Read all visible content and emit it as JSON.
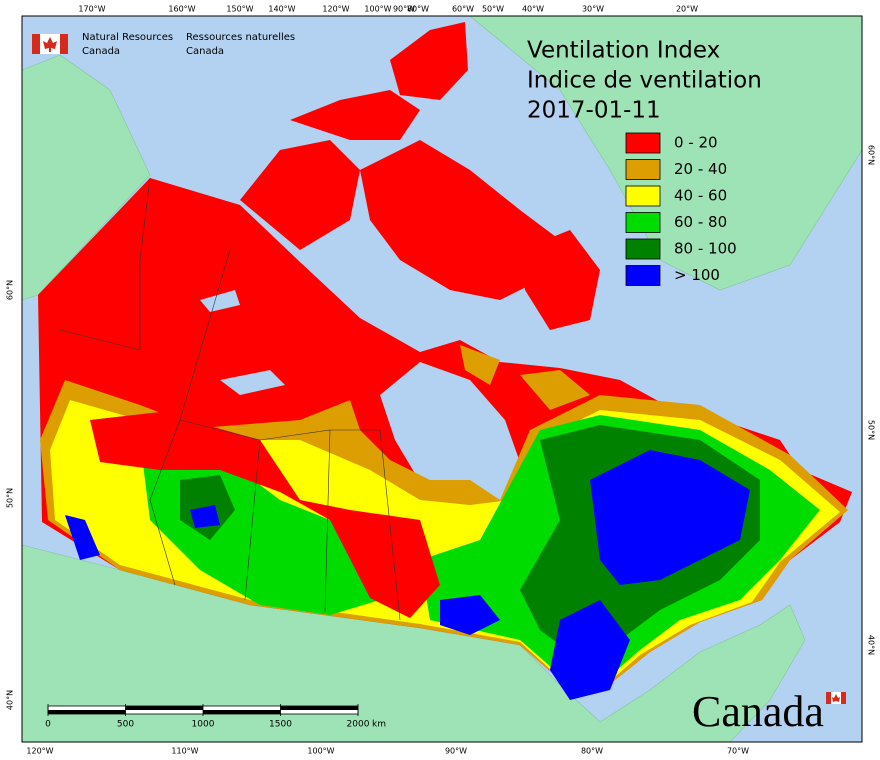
{
  "header": {
    "title": "Ventilation Index",
    "subtitle": "Indice de ventilation",
    "date": "2017-01-11"
  },
  "agency": {
    "en": [
      "Natural Resources",
      "Canada"
    ],
    "fr": [
      "Ressources naturelles",
      "Canada"
    ]
  },
  "legend": [
    {
      "label": "0 - 20",
      "color": "#ff0000"
    },
    {
      "label": "20 - 40",
      "color": "#dc9e00"
    },
    {
      "label": "40 - 60",
      "color": "#ffff00"
    },
    {
      "label": "60 - 80",
      "color": "#00dc00"
    },
    {
      "label": "80 - 100",
      "color": "#008200"
    },
    {
      "label": "> 100",
      "color": "#0000ff"
    }
  ],
  "graticule": {
    "top": [
      "170°W",
      "160°W",
      "150°W",
      "140°W",
      "120°W",
      "100°W",
      "90°W",
      "80°W",
      "60°W",
      "50°W",
      "40°W",
      "30°W",
      "20°W"
    ],
    "bottom": [
      "120°W",
      "110°W",
      "100°W",
      "90°W",
      "80°W",
      "70°W"
    ],
    "left": [
      "60°N",
      "50°N",
      "40°N"
    ],
    "right": [
      "60°N",
      "50°N",
      "40°N"
    ]
  },
  "scale_bar": {
    "ticks": [
      0,
      500,
      1000,
      1500,
      2000
    ],
    "unit": "km"
  },
  "wordmark": "Canada"
}
